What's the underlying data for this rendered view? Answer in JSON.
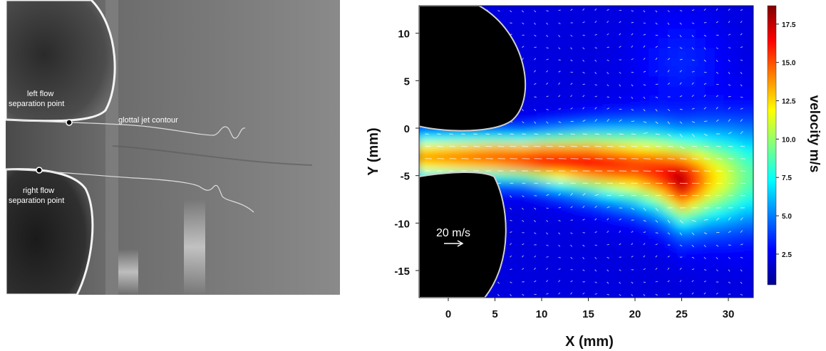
{
  "left_panel": {
    "labels": {
      "left_separation": [
        "left flow",
        "separation point"
      ],
      "right_separation": [
        "right flow",
        "separation point"
      ],
      "jet_contour": "glottal jet contour"
    }
  },
  "chart_data": {
    "type": "heatmap",
    "title": "",
    "xlabel": "X (mm)",
    "ylabel": "Y (mm)",
    "xlim": [
      -3,
      32
    ],
    "ylim": [
      -18,
      13
    ],
    "x_ticks": [
      0,
      5,
      10,
      15,
      20,
      25,
      30
    ],
    "y_ticks": [
      10,
      5,
      0,
      -5,
      -10,
      -15
    ],
    "colorbar": {
      "label": "velocity m/s",
      "range": [
        0.5,
        18.7
      ],
      "ticks": [
        2.5,
        5.0,
        7.5,
        10.0,
        12.5,
        15.0,
        17.5
      ],
      "colormap": "jet"
    },
    "jet_profile": {
      "x": [
        -3,
        5,
        10,
        15,
        20,
        22.5,
        25,
        28,
        32
      ],
      "center_y": [
        -3,
        -3,
        -3.2,
        -3.5,
        -4,
        -4.5,
        -5.5,
        -5.2,
        -5
      ],
      "peak_velocity": [
        14,
        15.5,
        16.5,
        16.5,
        15.5,
        16,
        18,
        13,
        9
      ]
    },
    "reference_vector": {
      "label": "20 m/s",
      "magnitude": 20
    },
    "vocal_folds": {
      "upper": {
        "tip_x": 6.8,
        "tip_y": 0.8
      },
      "lower": {
        "tip_x": 4.9,
        "tip_y": -5.1
      }
    },
    "grid": false
  }
}
